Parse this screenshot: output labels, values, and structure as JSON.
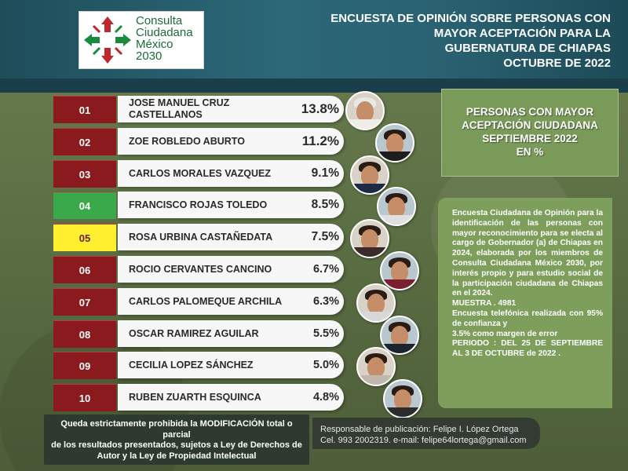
{
  "logo": {
    "line1": "Consulta",
    "line2": "Ciudadana",
    "line3": "México",
    "line4": "2030"
  },
  "header": {
    "line1": "ENCUESTA DE OPINIÓN SOBRE PERSONAS CON",
    "line2": "MAYOR ACEPTACIÓN PARA LA",
    "line3": "GUBERNATURA DE CHIAPAS",
    "line4": "OCTUBRE DE  2022"
  },
  "colors": {
    "rank_default": "#8b1a1f",
    "rank_green": "#3aa94a",
    "rank_yellow": "#ffef2e"
  },
  "chart_data": {
    "type": "table",
    "rows": [
      {
        "rank": "01",
        "name": "JOSE MANUEL CRUZ CASTELLANOS",
        "value": "13.8%",
        "rank_color": "default"
      },
      {
        "rank": "02",
        "name": "ZOE ROBLEDO ABURTO",
        "value": "11.2%",
        "rank_color": "default"
      },
      {
        "rank": "03",
        "name": "CARLOS MORALES VAZQUEZ",
        "value": "9.1%",
        "rank_color": "default"
      },
      {
        "rank": "04",
        "name": "FRANCISCO ROJAS TOLEDO",
        "value": "8.5%",
        "rank_color": "green"
      },
      {
        "rank": "05",
        "name": "ROSA URBINA CASTAÑEDATA",
        "value": "7.5%",
        "rank_color": "yellow"
      },
      {
        "rank": "06",
        "name": "ROCIO CERVANTES CANCINO",
        "value": "6.7%",
        "rank_color": "default"
      },
      {
        "rank": "07",
        "name": "CARLOS PALOMEQUE ARCHILA",
        "value": "6.3%",
        "rank_color": "default"
      },
      {
        "rank": "08",
        "name": "OSCAR RAMIREZ AGUILAR",
        "value": "5.5%",
        "rank_color": "default"
      },
      {
        "rank": "09",
        "name": "CECILIA LOPEZ SÁNCHEZ",
        "value": "5.0%",
        "rank_color": "default"
      },
      {
        "rank": "10",
        "name": "RUBEN ZUARTH ESQUINCA",
        "value": "4.8%",
        "rank_color": "default"
      }
    ]
  },
  "panel_title": {
    "line1": "PERSONAS CON MAYOR",
    "line2": "ACEPTACIÓN CIUDADANA",
    "line3": "SEPTIEMBRE 2022",
    "line4": "EN %"
  },
  "panel_info": {
    "description": "Encuesta Ciudadana de Opinión para la identificación de las personas con mayor reconocimiento para se electa al cargo de Gobernador (a) de Chiapas en 2024, elaborada por los miembros de Consulta Ciudadana México 2030, por interés propio y para estudio social de la participación ciudadana de Chiapas en el 2024.",
    "sample": "MUESTRA . 4981",
    "method": "Encuesta telefónica realizada con 95% de confianza y",
    "margin": " 3.5% como margen de error",
    "period": "PERIODO : DEL 25 DE SEPTIEMBRE AL 3 DE OCTUBRE de 2022 ."
  },
  "footer_left": {
    "line1": "Queda estrictamente prohibida la MODIFICACIÓN  total o parcial",
    "line2": "de los resultados presentados, sujetos a Ley de Derechos de",
    "line3": "Autor y la Ley de Propiedad Intelectual"
  },
  "footer_right": {
    "line1": "Responsable de publicación: Felipe I. López Ortega",
    "line2": "Cel. 993 2002319. e-mail: felipe64lortega@gmail.com"
  }
}
